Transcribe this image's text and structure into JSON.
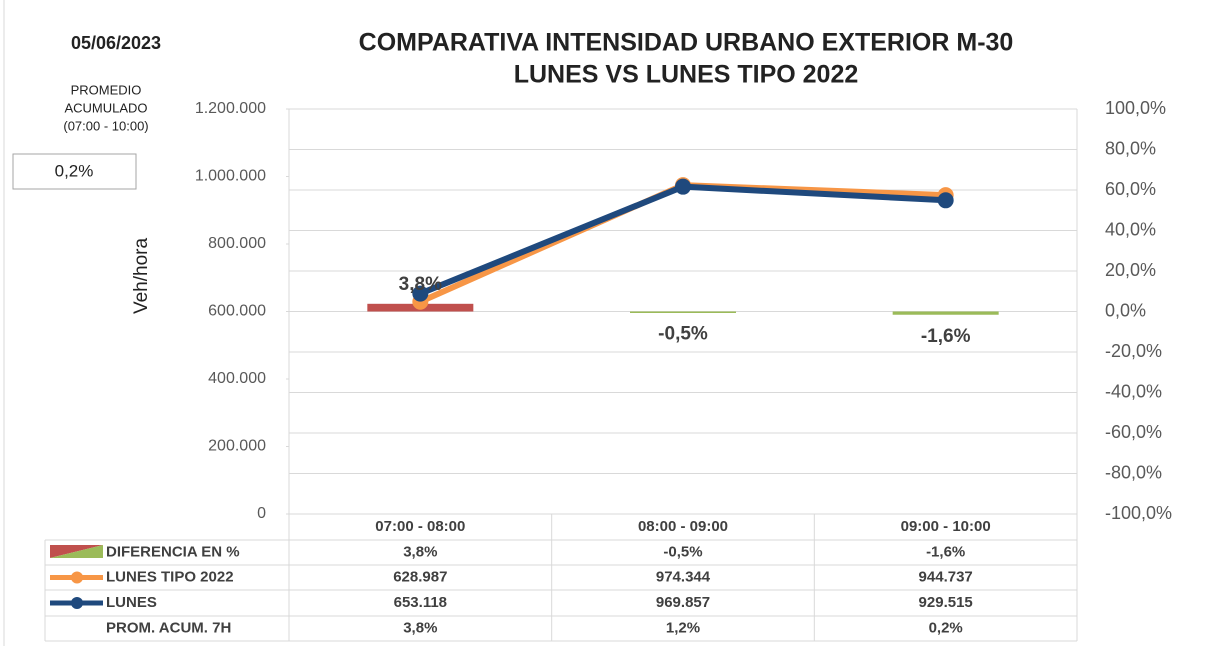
{
  "header": {
    "date": "05/06/2023",
    "summary_label": [
      "PROMEDIO",
      "ACUMULADO",
      "(07:00 - 10:00)"
    ],
    "summary_value": "0,2%"
  },
  "chart_data": {
    "type": "combo",
    "title": "COMPARATIVA INTENSIDAD URBANO EXTERIOR M-30",
    "subtitle": "LUNES VS LUNES TIPO 2022",
    "ylabel": "Veh/hora",
    "categories": [
      "07:00 - 08:00",
      "08:00 - 09:00",
      "09:00 - 10:00"
    ],
    "ylim": [
      0,
      1200000
    ],
    "yticks": [
      0,
      {
        "value": 200000,
        "label": "200.000"
      },
      {
        "value": 400000,
        "label": "400.000"
      },
      {
        "value": 600000,
        "label": "600.000"
      },
      {
        "value": 800000,
        "label": "800.000"
      },
      {
        "value": 1000000,
        "label": "1.000.000"
      },
      {
        "value": 1200000,
        "label": "1.200.000"
      }
    ],
    "y2lim": [
      -100,
      100
    ],
    "y2ticks": [
      {
        "value": -100,
        "label": "-100,0%"
      },
      {
        "value": -80,
        "label": "-80,0%"
      },
      {
        "value": -60,
        "label": "-60,0%"
      },
      {
        "value": -40,
        "label": "-40,0%"
      },
      {
        "value": -20,
        "label": "-20,0%"
      },
      {
        "value": 0,
        "label": "0,0%"
      },
      {
        "value": 20,
        "label": "20,0%"
      },
      {
        "value": 40,
        "label": "40,0%"
      },
      {
        "value": 60,
        "label": "60,0%"
      },
      {
        "value": 80,
        "label": "80,0%"
      },
      {
        "value": 100,
        "label": "100,0%"
      }
    ],
    "grid": true,
    "series": [
      {
        "name": "DIFERENCIA EN %",
        "type": "bar",
        "axis": "y2",
        "color": "#c0504d",
        "negative_color": "#9bbb59",
        "values": [
          3.8,
          -0.5,
          -1.6
        ],
        "value_labels": [
          "3,8%",
          "-0,5%",
          "-1,6%"
        ]
      },
      {
        "name": "LUNES TIPO 2022",
        "type": "line",
        "color": "#f79646",
        "values": [
          628987,
          974344,
          944737
        ],
        "value_labels": [
          "628.987",
          "974.344",
          "944.737"
        ]
      },
      {
        "name": "LUNES",
        "type": "line",
        "color": "#1f497d",
        "values": [
          653118,
          969857,
          929515
        ],
        "value_labels": [
          "653.118",
          "969.857",
          "929.515"
        ]
      }
    ],
    "extra_rows": [
      {
        "name": "PROM. ACUM. 7H",
        "values": [
          3.8,
          1.2,
          0.2
        ],
        "value_labels": [
          "3,8%",
          "1,2%",
          "0,2%"
        ]
      }
    ]
  }
}
